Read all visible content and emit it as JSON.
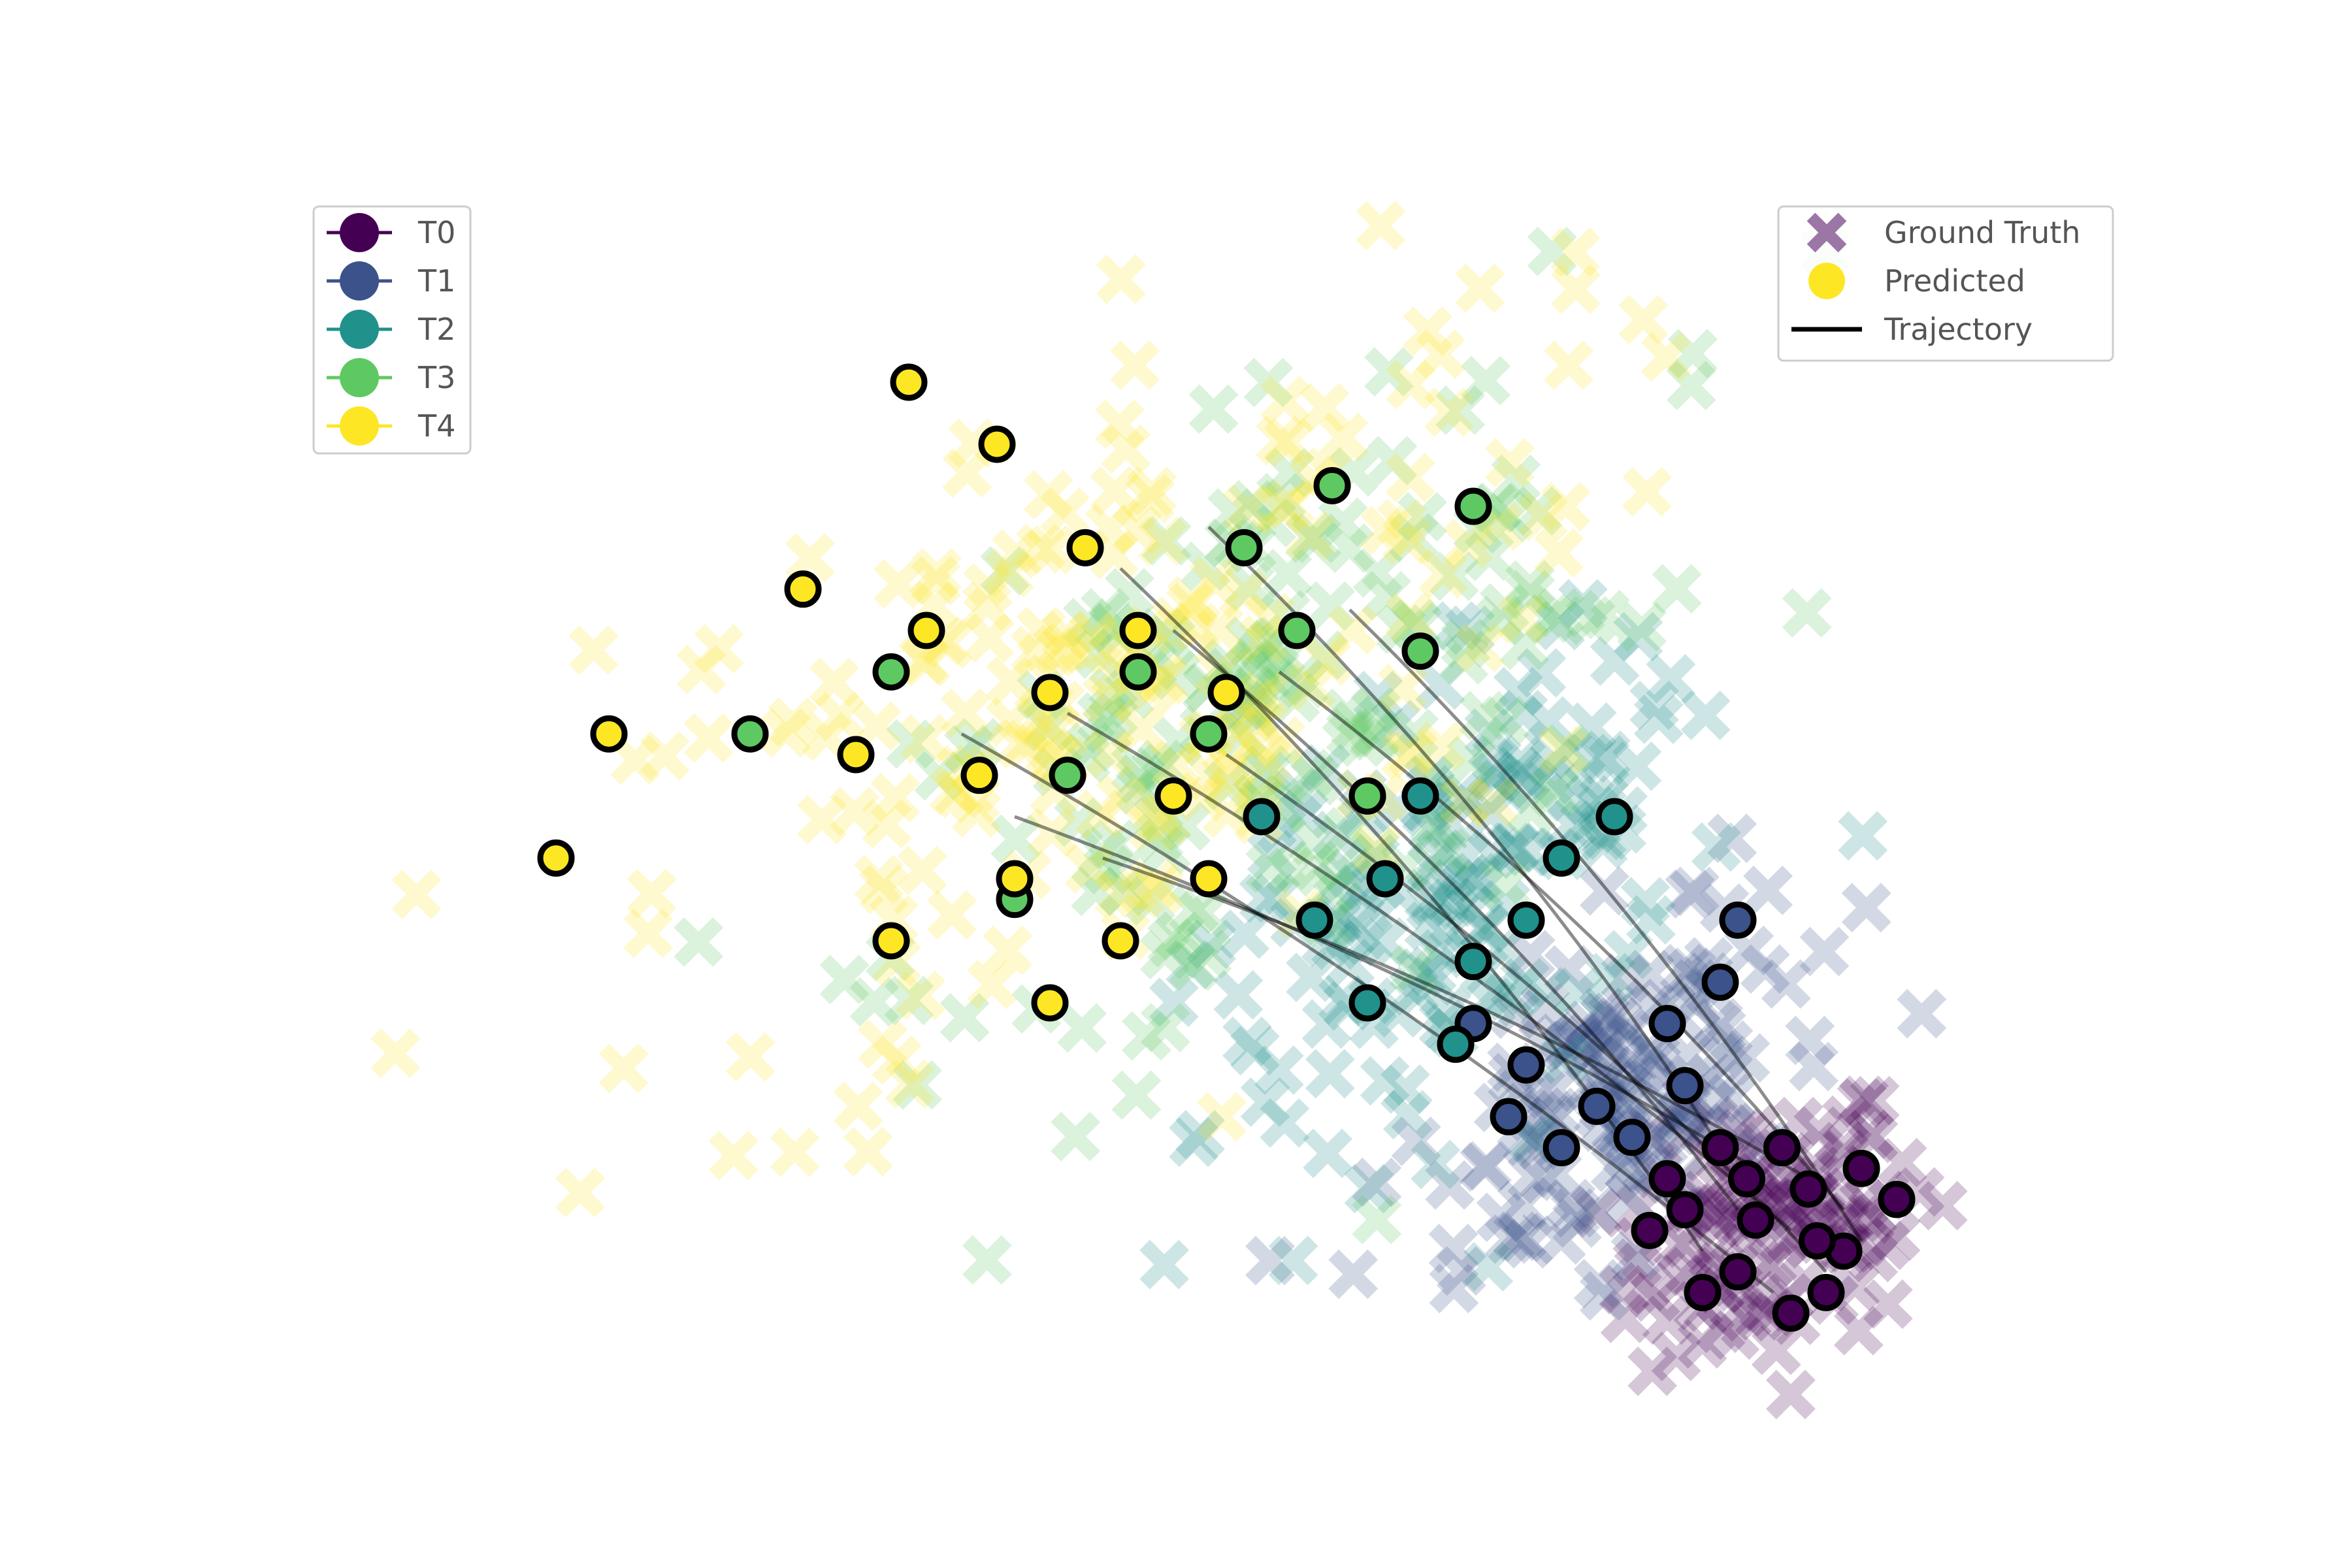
{
  "chart_data": {
    "type": "scatter",
    "title": "",
    "xlabel": "",
    "ylabel": "",
    "axes_visible": false,
    "grid": false,
    "xlim": [
      -5,
      5
    ],
    "ylim": [
      -3,
      3
    ],
    "time_legend": {
      "placement": "top-left",
      "entries": [
        {
          "label": "T0",
          "color": "#440154"
        },
        {
          "label": "T1",
          "color": "#3b528b"
        },
        {
          "label": "T2",
          "color": "#21918c"
        },
        {
          "label": "T3",
          "color": "#5ec962"
        },
        {
          "label": "T4",
          "color": "#fde725"
        }
      ]
    },
    "style_legend": {
      "placement": "top-right",
      "entries": [
        {
          "label": "Ground Truth",
          "marker": "x-icon",
          "color": "#9b76a6"
        },
        {
          "label": "Predicted",
          "marker": "circle-icon",
          "color": "#fde725"
        },
        {
          "label": "Trajectory",
          "marker": "line-icon",
          "color": "#000000"
        }
      ]
    },
    "series": [
      {
        "label": "T0",
        "color": "#440154",
        "center": [
          3.2,
          -2.0
        ],
        "spread": [
          0.45,
          0.3
        ],
        "rotation": 0.3,
        "count": 120,
        "predicted": [
          [
            2.7,
            -1.9
          ],
          [
            3.0,
            -2.2
          ],
          [
            3.4,
            -1.8
          ],
          [
            3.6,
            -2.1
          ],
          [
            2.9,
            -1.6
          ],
          [
            3.3,
            -2.4
          ],
          [
            3.1,
            -1.95
          ],
          [
            3.7,
            -1.7
          ],
          [
            2.5,
            -2.0
          ],
          [
            3.5,
            -2.3
          ],
          [
            3.05,
            -1.75
          ],
          [
            2.8,
            -2.3
          ],
          [
            3.45,
            -2.05
          ],
          [
            3.9,
            -1.85
          ],
          [
            2.6,
            -1.75
          ],
          [
            3.25,
            -1.6
          ]
        ]
      },
      {
        "label": "T1",
        "color": "#3b528b",
        "center": [
          2.3,
          -1.3
        ],
        "spread": [
          0.6,
          0.35
        ],
        "rotation": 0.6,
        "count": 140,
        "predicted": [
          [
            1.8,
            -1.2
          ],
          [
            2.2,
            -1.4
          ],
          [
            2.6,
            -1.0
          ],
          [
            2.0,
            -1.6
          ],
          [
            1.5,
            -1.0
          ],
          [
            2.9,
            -0.8
          ],
          [
            2.4,
            -1.55
          ],
          [
            1.7,
            -1.45
          ],
          [
            3.0,
            -0.5
          ],
          [
            2.7,
            -1.3
          ]
        ]
      },
      {
        "label": "T2",
        "color": "#21918c",
        "center": [
          1.4,
          -0.4
        ],
        "spread": [
          0.9,
          0.45
        ],
        "rotation": 0.65,
        "count": 160,
        "predicted": [
          [
            1.0,
            -0.3
          ],
          [
            1.5,
            -0.7
          ],
          [
            2.0,
            -0.2
          ],
          [
            0.6,
            -0.5
          ],
          [
            1.2,
            0.1
          ],
          [
            2.3,
            0.0
          ],
          [
            0.9,
            -0.9
          ],
          [
            1.8,
            -0.5
          ],
          [
            1.4,
            -1.1
          ],
          [
            0.3,
            0.0
          ]
        ]
      },
      {
        "label": "T3",
        "color": "#5ec962",
        "center": [
          0.4,
          0.5
        ],
        "spread": [
          1.2,
          0.6
        ],
        "rotation": 0.5,
        "count": 180,
        "predicted": [
          [
            0.0,
            0.4
          ],
          [
            0.5,
            0.9
          ],
          [
            0.9,
            0.1
          ],
          [
            -0.4,
            0.7
          ],
          [
            1.2,
            0.8
          ],
          [
            0.2,
            1.3
          ],
          [
            -0.8,
            0.2
          ],
          [
            1.5,
            1.5
          ],
          [
            -1.8,
            0.7
          ],
          [
            -2.6,
            0.4
          ],
          [
            -1.1,
            -0.4
          ],
          [
            0.7,
            1.6
          ]
        ]
      },
      {
        "label": "T4",
        "color": "#fde725",
        "center": [
          -0.6,
          0.6
        ],
        "spread": [
          1.5,
          0.75
        ],
        "rotation": 0.45,
        "count": 200,
        "predicted": [
          [
            -0.9,
            0.6
          ],
          [
            -0.4,
            0.9
          ],
          [
            -1.3,
            0.2
          ],
          [
            -0.2,
            0.1
          ],
          [
            -1.6,
            0.9
          ],
          [
            -0.7,
            1.3
          ],
          [
            -2.0,
            0.3
          ],
          [
            0.1,
            0.6
          ],
          [
            -1.1,
            -0.3
          ],
          [
            -2.3,
            1.1
          ],
          [
            -0.5,
            -0.6
          ],
          [
            -3.4,
            0.4
          ],
          [
            -3.7,
            -0.2
          ],
          [
            -1.2,
            1.8
          ],
          [
            -1.7,
            2.1
          ],
          [
            -0.9,
            -0.9
          ],
          [
            -1.8,
            -0.6
          ],
          [
            0.0,
            -0.3
          ]
        ]
      }
    ],
    "trajectories": [
      {
        "from": [
          3.3,
          -2.0
        ],
        "to": [
          -0.8,
          0.5
        ]
      },
      {
        "from": [
          3.0,
          -1.9
        ],
        "to": [
          -0.2,
          0.9
        ]
      },
      {
        "from": [
          3.5,
          -2.2
        ],
        "to": [
          0.1,
          0.3
        ]
      },
      {
        "from": [
          3.1,
          -1.7
        ],
        "to": [
          -1.1,
          0.0
        ]
      },
      {
        "from": [
          2.8,
          -2.1
        ],
        "to": [
          -0.5,
          1.2
        ]
      },
      {
        "from": [
          3.6,
          -1.9
        ],
        "to": [
          0.4,
          0.7
        ]
      },
      {
        "from": [
          3.2,
          -2.3
        ],
        "to": [
          -1.4,
          0.4
        ]
      },
      {
        "from": [
          2.9,
          -1.6
        ],
        "to": [
          0.0,
          1.4
        ]
      },
      {
        "from": [
          3.4,
          -1.75
        ],
        "to": [
          -0.6,
          -0.2
        ]
      },
      {
        "from": [
          3.7,
          -2.05
        ],
        "to": [
          0.8,
          1.0
        ]
      }
    ]
  }
}
